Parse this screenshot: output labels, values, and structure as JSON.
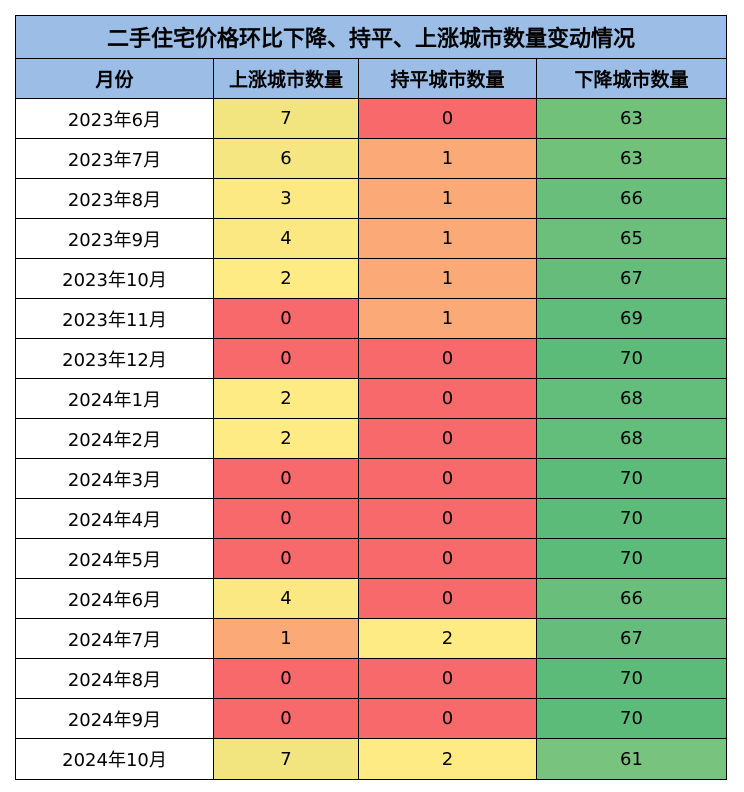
{
  "chart_data": {
    "type": "table",
    "title": "二手住宅价格环比下降、持平、上涨城市数量变动情况",
    "columns": [
      "月份",
      "上涨城市数量",
      "持平城市数量",
      "下降城市数量"
    ],
    "rows": [
      {
        "month": "2023年6月",
        "up": "7",
        "flat": "0",
        "down": "63"
      },
      {
        "month": "2023年7月",
        "up": "6",
        "flat": "1",
        "down": "63"
      },
      {
        "month": "2023年8月",
        "up": "3",
        "flat": "1",
        "down": "66"
      },
      {
        "month": "2023年9月",
        "up": "4",
        "flat": "1",
        "down": "65"
      },
      {
        "month": "2023年10月",
        "up": "2",
        "flat": "1",
        "down": "67"
      },
      {
        "month": "2023年11月",
        "up": "0",
        "flat": "1",
        "down": "69"
      },
      {
        "month": "2023年12月",
        "up": "0",
        "flat": "0",
        "down": "70"
      },
      {
        "month": "2024年1月",
        "up": "2",
        "flat": "0",
        "down": "68"
      },
      {
        "month": "2024年2月",
        "up": "2",
        "flat": "0",
        "down": "68"
      },
      {
        "month": "2024年3月",
        "up": "0",
        "flat": "0",
        "down": "70"
      },
      {
        "month": "2024年4月",
        "up": "0",
        "flat": "0",
        "down": "70"
      },
      {
        "month": "2024年5月",
        "up": "0",
        "flat": "0",
        "down": "70"
      },
      {
        "month": "2024年6月",
        "up": "4",
        "flat": "0",
        "down": "66"
      },
      {
        "month": "2024年7月",
        "up": "1",
        "flat": "2",
        "down": "67"
      },
      {
        "month": "2024年8月",
        "up": "0",
        "flat": "0",
        "down": "70"
      },
      {
        "month": "2024年9月",
        "up": "0",
        "flat": "0",
        "down": "70"
      },
      {
        "month": "2024年10月",
        "up": "7",
        "flat": "2",
        "down": "61"
      }
    ]
  },
  "colors": {
    "header": "#9bbde6",
    "up": {
      "0": "#f8696b",
      "1": "#fbaa77",
      "2": "#ffeb84",
      "3": "#fde983",
      "4": "#fce883",
      "6": "#f6e682",
      "7": "#f2e580"
    },
    "flat": {
      "0": "#f8696b",
      "1": "#fbaa77",
      "2": "#ffeb84"
    },
    "down": {
      "61": "#78c37d",
      "63": "#71c17b",
      "65": "#6cbf7b",
      "66": "#69be7b",
      "67": "#66bd7b",
      "68": "#63bd7b",
      "69": "#60bc7a",
      "70": "#5dbb7a"
    }
  }
}
